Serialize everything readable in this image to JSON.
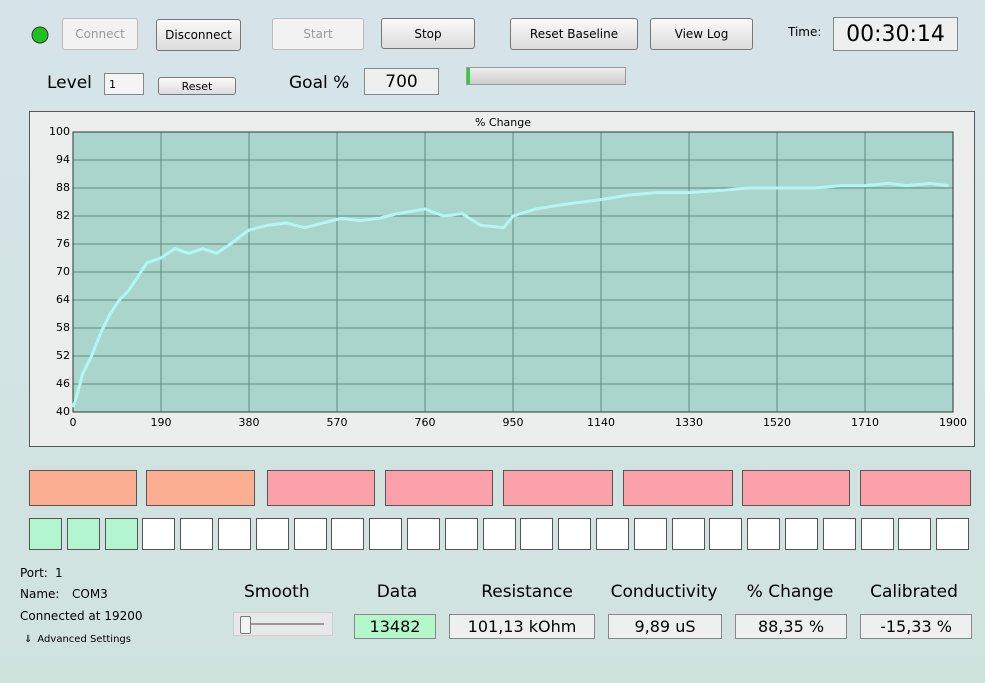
{
  "toolbar": {
    "connect": "Connect",
    "disconnect": "Disconnect",
    "start": "Start",
    "stop": "Stop",
    "reset_baseline": "Reset Baseline",
    "view_log": "View Log",
    "time_label": "Time:",
    "time": "00:30:14"
  },
  "level": {
    "label": "Level",
    "value": "1",
    "reset": "Reset",
    "goal_label": "Goal %",
    "goal": "700"
  },
  "chart_data": {
    "type": "line",
    "title": "% Change",
    "series": [
      {
        "color": "#b4f7f2",
        "x": [
          0,
          10,
          20,
          40,
          60,
          80,
          100,
          120,
          140,
          160,
          190,
          220,
          250,
          280,
          310,
          340,
          380,
          420,
          460,
          500,
          540,
          580,
          620,
          660,
          700,
          760,
          800,
          840,
          880,
          930,
          950,
          1000,
          1060,
          1140,
          1200,
          1260,
          1330,
          1400,
          1460,
          1520,
          1600,
          1660,
          1710,
          1760,
          1800,
          1850,
          1890
        ],
        "values": [
          41,
          44,
          48,
          52,
          57,
          61,
          64,
          66,
          69,
          72,
          73,
          75,
          74,
          75,
          74,
          76,
          79,
          80,
          80.5,
          79.5,
          80.5,
          81.5,
          81,
          81.5,
          82.5,
          83.5,
          82,
          82.5,
          80,
          79.5,
          82,
          83.5,
          84.5,
          85.5,
          86.5,
          87,
          87,
          87.5,
          88,
          88,
          88,
          88.5,
          88.5,
          89,
          88.5,
          89,
          88.5
        ]
      }
    ],
    "xlim": [
      0,
      1900
    ],
    "xticks": [
      0,
      190,
      380,
      570,
      760,
      950,
      1140,
      1330,
      1520,
      1710,
      1900
    ],
    "ylim": [
      40,
      100
    ],
    "yticks": [
      40,
      46,
      52,
      58,
      64,
      70,
      76,
      82,
      88,
      94,
      100
    ],
    "grid": true
  },
  "status": {
    "port_label": "Port:",
    "port": "1",
    "name_label": "Name:",
    "name": "COM3",
    "connected": "Connected at 19200",
    "advanced": "Advanced Settings"
  },
  "smooth": "Smooth",
  "readouts": [
    {
      "label": "Data",
      "value": "13482"
    },
    {
      "label": "Resistance",
      "value": "101,13 kOhm"
    },
    {
      "label": "Conductivity",
      "value": "9,89 uS"
    },
    {
      "label": "% Change",
      "value": "88,35 %"
    },
    {
      "label": "Calibrated",
      "value": "-15,33 %"
    }
  ]
}
